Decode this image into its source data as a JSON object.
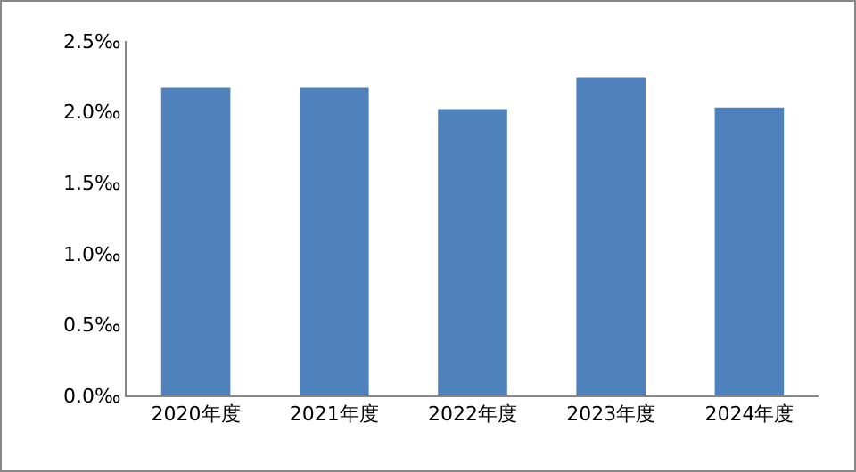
{
  "chart_data": {
    "type": "bar",
    "categories": [
      "2020年度",
      "2021年度",
      "2022年度",
      "2023年度",
      "2024年度"
    ],
    "values": [
      2.17,
      2.17,
      2.02,
      2.24,
      2.03
    ],
    "color": "#4f81bd",
    "ylim": [
      0,
      2.5
    ],
    "yticks": [
      {
        "value": 0,
        "label": "0.0‰"
      },
      {
        "value": 0.5,
        "label": "0.5‰"
      },
      {
        "value": 1,
        "label": "1.0‰"
      },
      {
        "value": 1.5,
        "label": "1.5‰"
      },
      {
        "value": 2,
        "label": "2.0‰"
      },
      {
        "value": 2.5,
        "label": "2.5‰"
      }
    ],
    "grid": false
  }
}
